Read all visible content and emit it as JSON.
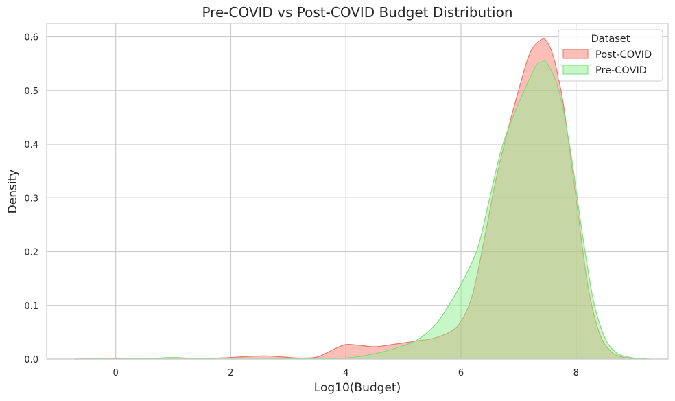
{
  "chart_data": {
    "type": "area",
    "title": "Pre-COVID vs Post-COVID Budget Distribution",
    "xlabel": "Log10(Budget)",
    "ylabel": "Density",
    "xlim": [
      -1.2,
      9.6
    ],
    "ylim": [
      0,
      0.625
    ],
    "x_ticks": [
      0,
      2,
      4,
      6,
      8
    ],
    "y_ticks": [
      0.0,
      0.1,
      0.2,
      0.3,
      0.4,
      0.5,
      0.6
    ],
    "grid": true,
    "legend": {
      "title": "Dataset",
      "placement": "top-right"
    },
    "series": [
      {
        "name": "Post-COVID",
        "fill": "#fa8072",
        "stroke": "#e8776a",
        "x": [
          -0.7,
          -0.4,
          0.0,
          0.5,
          1.0,
          1.5,
          2.0,
          2.3,
          2.6,
          2.9,
          3.2,
          3.5,
          3.8,
          4.0,
          4.2,
          4.5,
          4.8,
          5.0,
          5.3,
          5.5,
          5.8,
          6.0,
          6.2,
          6.4,
          6.6,
          6.8,
          7.0,
          7.2,
          7.4,
          7.5,
          7.6,
          7.7,
          7.8,
          8.0,
          8.2,
          8.4,
          8.6,
          8.8,
          9.0,
          9.2
        ],
        "y": [
          0.0,
          0.0005,
          0.001,
          0.001,
          0.002,
          0.001,
          0.003,
          0.005,
          0.006,
          0.004,
          0.002,
          0.004,
          0.019,
          0.027,
          0.026,
          0.023,
          0.027,
          0.03,
          0.035,
          0.038,
          0.05,
          0.07,
          0.12,
          0.22,
          0.33,
          0.42,
          0.5,
          0.57,
          0.595,
          0.59,
          0.565,
          0.52,
          0.46,
          0.3,
          0.14,
          0.05,
          0.015,
          0.004,
          0.001,
          0.0
        ]
      },
      {
        "name": "Pre-COVID",
        "fill": "#90ee90",
        "stroke": "#7ddc7d",
        "x": [
          -0.7,
          -0.4,
          0.0,
          0.3,
          0.6,
          1.0,
          1.4,
          1.8,
          2.0,
          2.5,
          3.0,
          3.5,
          4.0,
          4.5,
          5.0,
          5.3,
          5.6,
          5.9,
          6.1,
          6.3,
          6.5,
          6.7,
          6.9,
          7.1,
          7.3,
          7.4,
          7.5,
          7.7,
          7.9,
          8.1,
          8.3,
          8.5,
          8.7,
          8.9,
          9.1,
          9.3
        ],
        "y": [
          0.0,
          0.0005,
          0.002,
          0.001,
          0.001,
          0.003,
          0.001,
          0.002,
          0.002,
          0.002,
          0.001,
          0.001,
          0.002,
          0.01,
          0.025,
          0.04,
          0.07,
          0.12,
          0.16,
          0.21,
          0.3,
          0.39,
          0.45,
          0.5,
          0.545,
          0.553,
          0.55,
          0.5,
          0.39,
          0.24,
          0.11,
          0.04,
          0.012,
          0.004,
          0.001,
          0.0
        ]
      }
    ]
  }
}
